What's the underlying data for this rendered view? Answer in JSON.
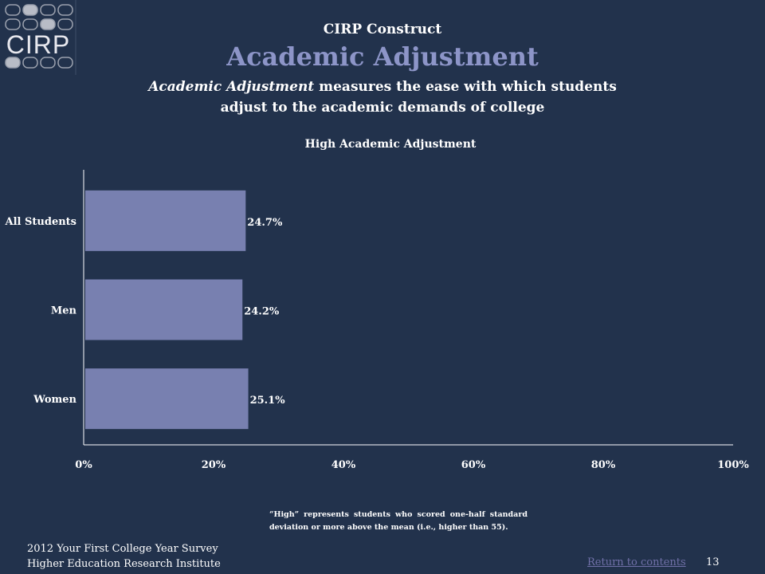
{
  "logo": {
    "text": "CIRP"
  },
  "header": {
    "construct_label": "CIRP Construct",
    "title": "Academic Adjustment",
    "description_italic": "Academic Adjustment",
    "description_rest": " measures the ease with which students adjust to the academic demands of college"
  },
  "chart_data": {
    "type": "bar",
    "orientation": "horizontal",
    "title": "High Academic Adjustment",
    "categories": [
      "All Students",
      "Men",
      "Women"
    ],
    "values": [
      24.7,
      24.2,
      25.1
    ],
    "value_labels": [
      "24.7%",
      "24.2%",
      "25.1%"
    ],
    "xlim": [
      0,
      100
    ],
    "xticks": [
      0,
      20,
      40,
      60,
      80,
      100
    ],
    "xtick_labels": [
      "0%",
      "20%",
      "40%",
      "60%",
      "80%",
      "100%"
    ],
    "bar_color": "#7880b0",
    "grid": false
  },
  "note": "“High” represents students who scored one-half standard deviation or more above the mean (i.e., higher than 55).",
  "footer": {
    "line1": "2012 Your First College Year Survey",
    "line2": "Higher Education Research Institute",
    "return_link": "Return to contents",
    "page_number": "13"
  }
}
